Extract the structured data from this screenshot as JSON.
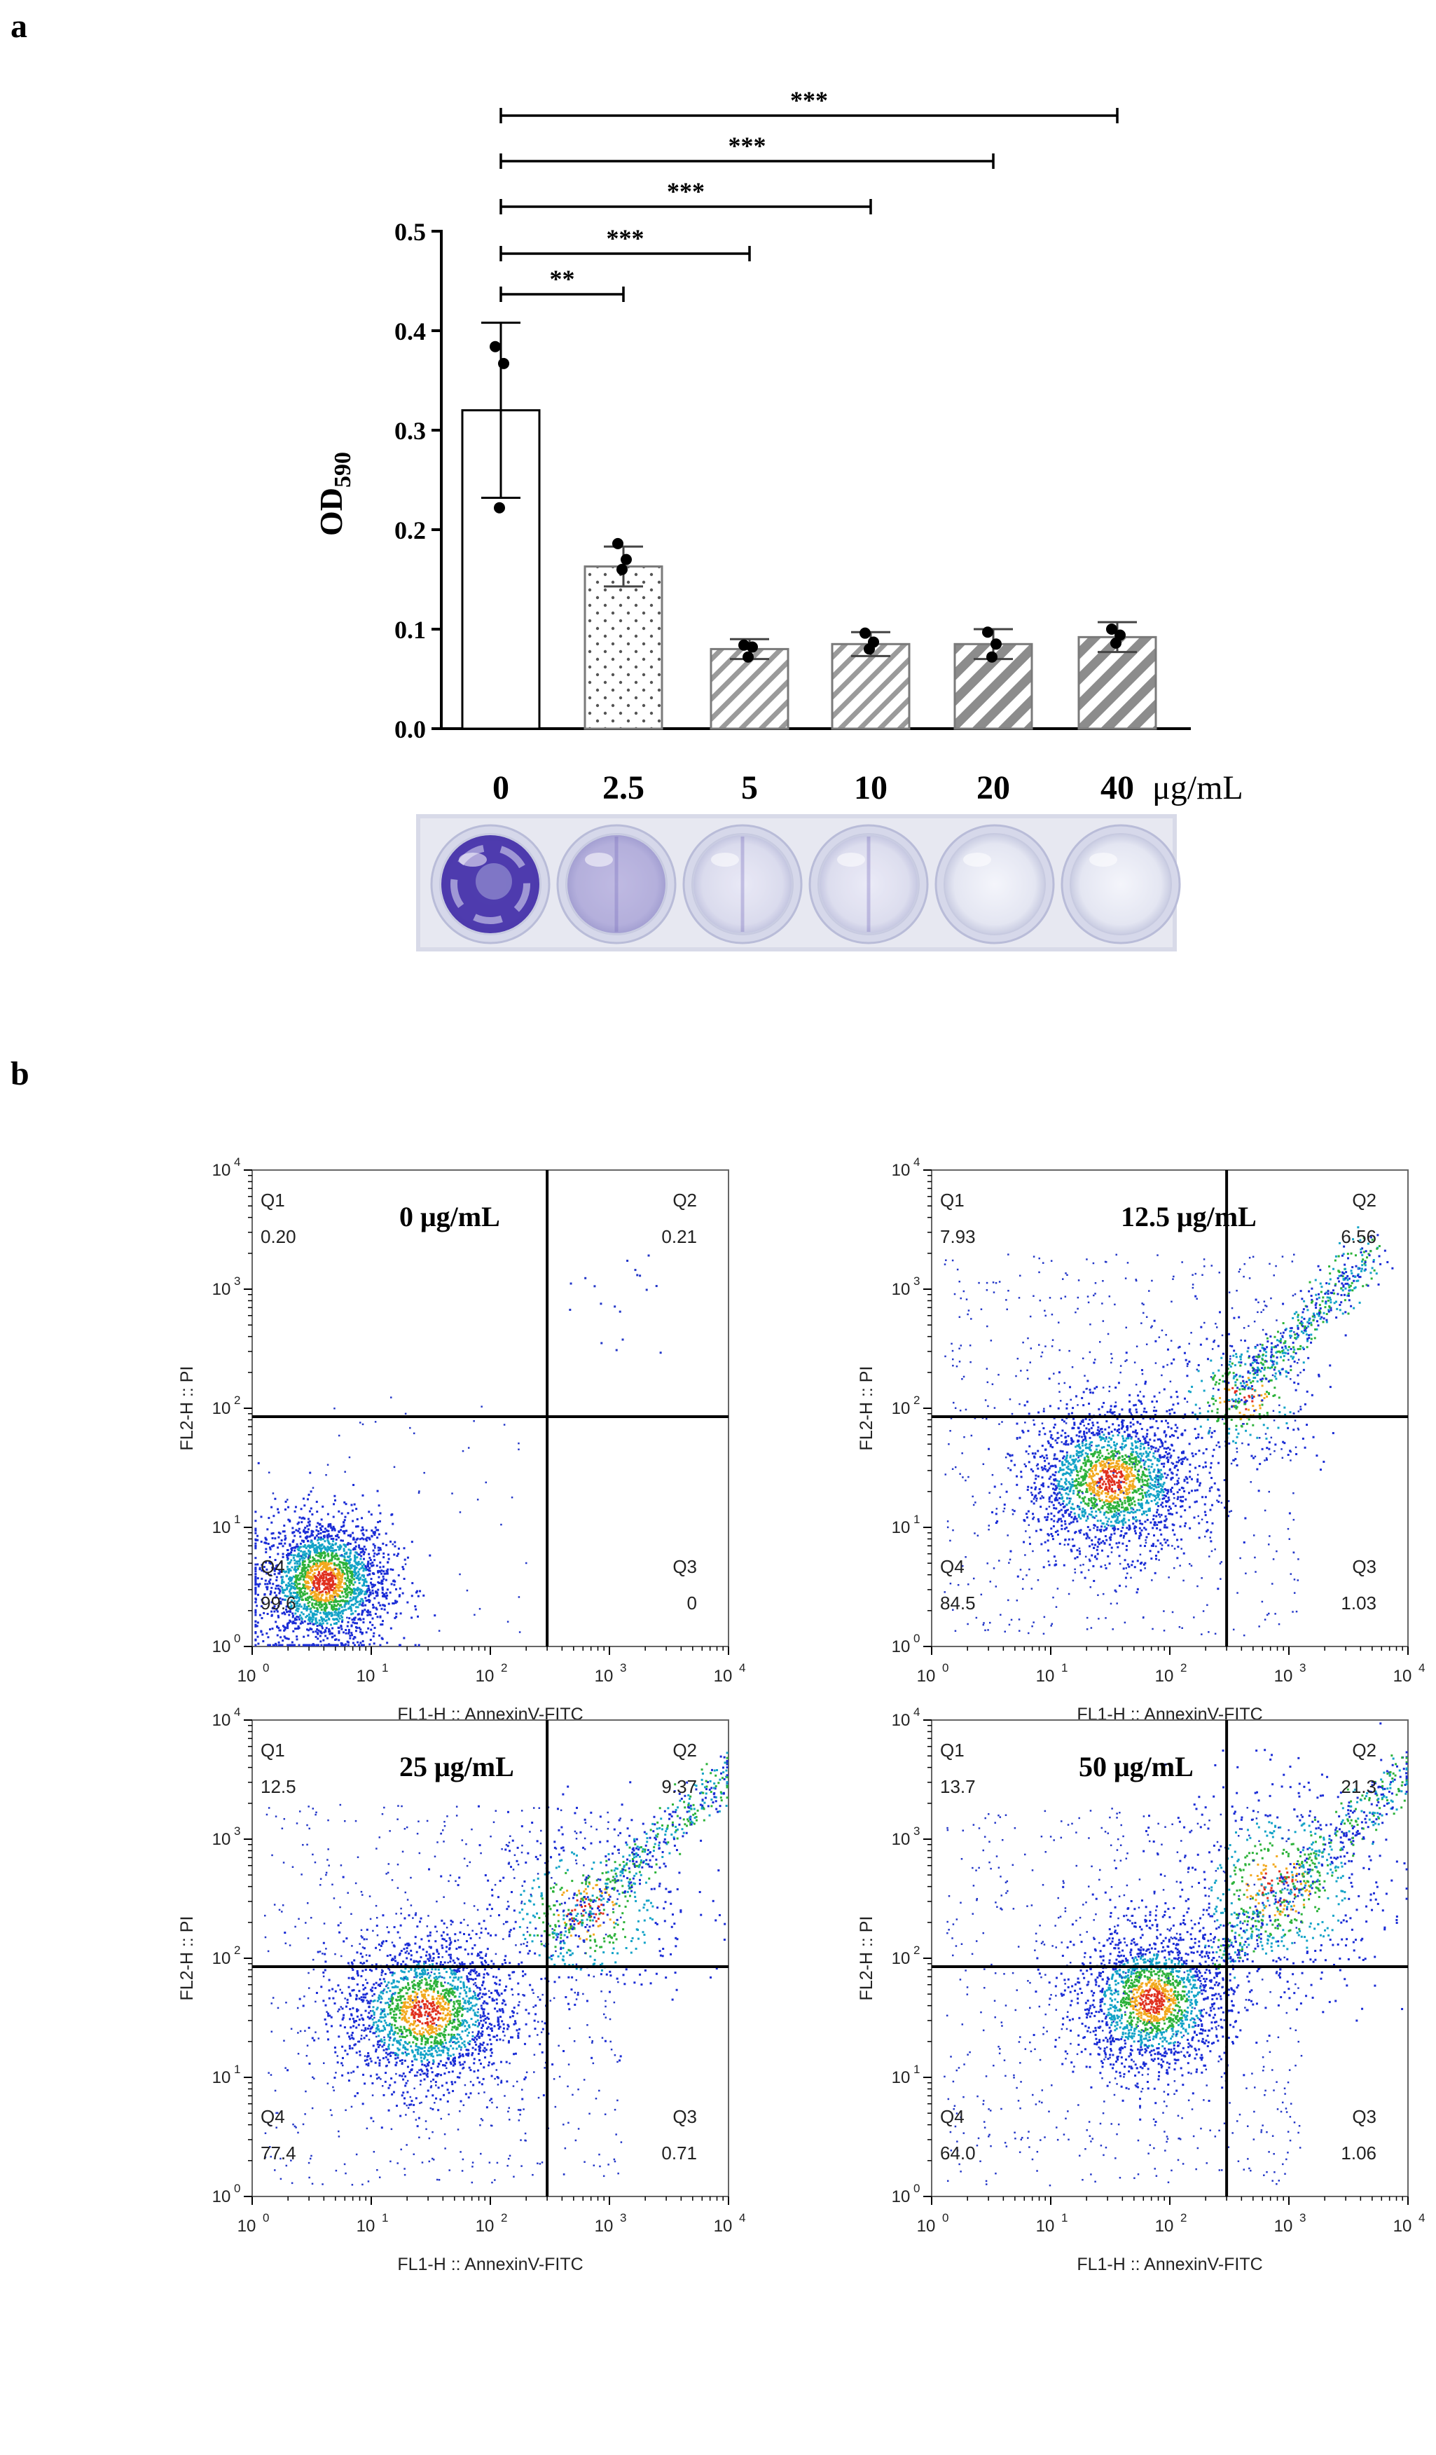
{
  "panels": {
    "a": "a",
    "b": "b"
  },
  "chart_data": [
    {
      "type": "bar",
      "panel": "a",
      "title": "",
      "xlabel": "",
      "x_unit": "μg/mL",
      "ylabel_main": "OD",
      "ylabel_sub": "590",
      "ylim": [
        0,
        0.5
      ],
      "yticks": [
        0.0,
        0.1,
        0.2,
        0.3,
        0.4,
        0.5
      ],
      "ytick_labels": [
        "0.0",
        "0.1",
        "0.2",
        "0.3",
        "0.4",
        "0.5"
      ],
      "categories": [
        "0",
        "2.5",
        "5",
        "10",
        "20",
        "40"
      ],
      "values": [
        0.32,
        0.163,
        0.08,
        0.085,
        0.085,
        0.092
      ],
      "errors": [
        0.088,
        0.02,
        0.01,
        0.012,
        0.015,
        0.015
      ],
      "points": [
        [
          0.384,
          0.367,
          0.222
        ],
        [
          0.186,
          0.17,
          0.16
        ],
        [
          0.084,
          0.082,
          0.072
        ],
        [
          0.096,
          0.087,
          0.08
        ],
        [
          0.097,
          0.085,
          0.072
        ],
        [
          0.1,
          0.094,
          0.086
        ]
      ],
      "patterns": [
        "empty",
        "dots",
        "diag-thin",
        "diag-thin",
        "diag-thick",
        "diag-thick"
      ],
      "significance": [
        {
          "from": "0",
          "to": "2.5",
          "label": "**"
        },
        {
          "from": "0",
          "to": "5",
          "label": "***"
        },
        {
          "from": "0",
          "to": "10",
          "label": "***"
        },
        {
          "from": "0",
          "to": "20",
          "label": "***"
        },
        {
          "from": "0",
          "to": "40",
          "label": "***"
        }
      ],
      "well_stain": [
        0.95,
        0.3,
        0.06,
        0.05,
        0.04,
        0.03
      ]
    },
    {
      "type": "scatter",
      "panel": "b",
      "subtype": "flow-cytometry",
      "xlabel": "FL1-H :: AnnexinV-FITC",
      "ylabel": "FL2-H :: PI",
      "x_scale": "log",
      "y_scale": "log",
      "xlim": [
        1,
        10000
      ],
      "ylim": [
        1,
        10000
      ],
      "tick_base": "10",
      "tick_exponents": [
        "0",
        "1",
        "2",
        "3",
        "4"
      ],
      "gate_x": 300,
      "gate_y": 85,
      "plots": [
        {
          "condition": "0 μg/mL",
          "quadrants": {
            "Q1": "0.20",
            "Q2": "0.21",
            "Q3": "0",
            "Q4": "99.6"
          }
        },
        {
          "condition": "12.5 μg/mL",
          "quadrants": {
            "Q1": "7.93",
            "Q2": "6.56",
            "Q3": "1.03",
            "Q4": "84.5"
          }
        },
        {
          "condition": "25 μg/mL",
          "quadrants": {
            "Q1": "12.5",
            "Q2": "9.37",
            "Q3": "0.71",
            "Q4": "77.4"
          }
        },
        {
          "condition": "50 μg/mL",
          "quadrants": {
            "Q1": "13.7",
            "Q2": "21.3",
            "Q3": "1.06",
            "Q4": "64.0"
          }
        }
      ]
    }
  ]
}
